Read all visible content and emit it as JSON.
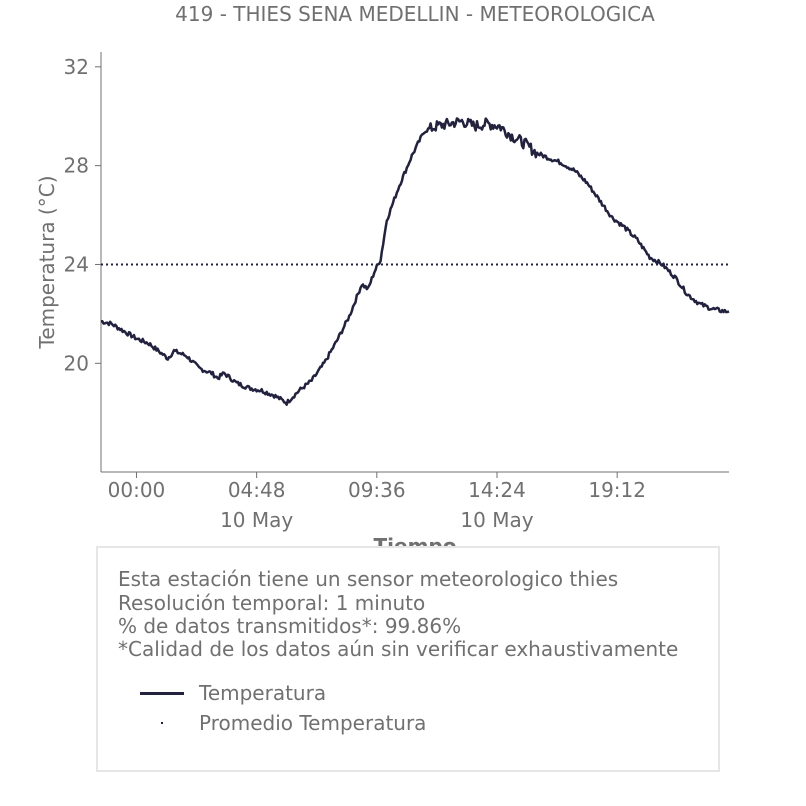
{
  "chart_data": {
    "type": "line",
    "title": "419 - THIES SENA MEDELLIN - METEOROLOGICA",
    "xlabel": "Tiempo",
    "ylabel": "Temperatura (°C)",
    "ylim": [
      15.6,
      32.6
    ],
    "xlim": [
      "09 May 22:35",
      "10 May 23:40"
    ],
    "yticks": [
      20,
      24,
      28,
      32
    ],
    "xticks": [
      {
        "label": "00:00",
        "sublabel": "",
        "time": "10 May 00:00"
      },
      {
        "label": "04:48",
        "sublabel": "10 May",
        "time": "10 May 04:48"
      },
      {
        "label": "09:36",
        "sublabel": "",
        "time": "10 May 09:36"
      },
      {
        "label": "14:24",
        "sublabel": "10 May",
        "time": "10 May 14:24"
      },
      {
        "label": "19:12",
        "sublabel": "",
        "time": "10 May 19:12"
      }
    ],
    "grid": false,
    "series": [
      {
        "name": "Temperatura",
        "color": "#22223f",
        "style": "solid",
        "x": [
          "09 May 22:35",
          "09 May 23:00",
          "09 May 23:30",
          "10 May 00:00",
          "10 May 00:30",
          "10 May 01:00",
          "10 May 01:15",
          "10 May 01:30",
          "10 May 02:00",
          "10 May 02:30",
          "10 May 03:00",
          "10 May 03:15",
          "10 May 03:30",
          "10 May 04:00",
          "10 May 04:30",
          "10 May 05:00",
          "10 May 05:30",
          "10 May 06:00",
          "10 May 06:30",
          "10 May 07:00",
          "10 May 07:30",
          "10 May 08:00",
          "10 May 08:30",
          "10 May 09:00",
          "10 May 09:15",
          "10 May 09:30",
          "10 May 09:45",
          "10 May 10:00",
          "10 May 10:30",
          "10 May 11:00",
          "10 May 11:30",
          "10 May 12:00",
          "10 May 12:30",
          "10 May 13:00",
          "10 May 13:30",
          "10 May 14:00",
          "10 May 14:30",
          "10 May 15:00",
          "10 May 15:30",
          "10 May 16:00",
          "10 May 16:30",
          "10 May 17:00",
          "10 May 17:30",
          "10 May 18:00",
          "10 May 18:30",
          "10 May 19:00",
          "10 May 19:30",
          "10 May 20:00",
          "10 May 20:30",
          "10 May 21:00",
          "10 May 21:30",
          "10 May 22:00",
          "10 May 22:30",
          "10 May 23:00",
          "10 May 23:30",
          "10 May 23:40"
        ],
        "y": [
          21.7,
          21.6,
          21.3,
          21.0,
          20.8,
          20.4,
          20.2,
          20.5,
          20.3,
          19.8,
          19.6,
          19.4,
          19.6,
          19.2,
          19.0,
          18.9,
          18.7,
          18.4,
          18.9,
          19.3,
          20.0,
          20.9,
          21.9,
          23.2,
          23.0,
          23.7,
          24.2,
          25.8,
          27.2,
          28.4,
          29.4,
          29.6,
          29.7,
          29.8,
          29.6,
          29.7,
          29.6,
          29.2,
          28.9,
          28.5,
          28.3,
          28.1,
          27.8,
          27.3,
          26.6,
          25.9,
          25.5,
          25.0,
          24.3,
          24.0,
          23.5,
          22.8,
          22.4,
          22.2,
          22.1,
          22.1
        ]
      },
      {
        "name": "Promedio Temperatura",
        "color": "#22223f",
        "style": "dotted",
        "value": 24.0
      }
    ]
  },
  "info": {
    "line1": "Esta estación tiene un sensor meteorologico thies",
    "line2": "Resolución temporal: 1 minuto",
    "line3": "% de datos transmitidos*: 99.86%",
    "line4": "*Calidad de los datos aún sin verificar exhaustivamente"
  },
  "legend": {
    "item1": "Temperatura",
    "item2": "Promedio Temperatura"
  },
  "colors": {
    "line": "#22223f",
    "text": "#707070",
    "axis": "#707070",
    "box_border": "#e6e6e6"
  }
}
